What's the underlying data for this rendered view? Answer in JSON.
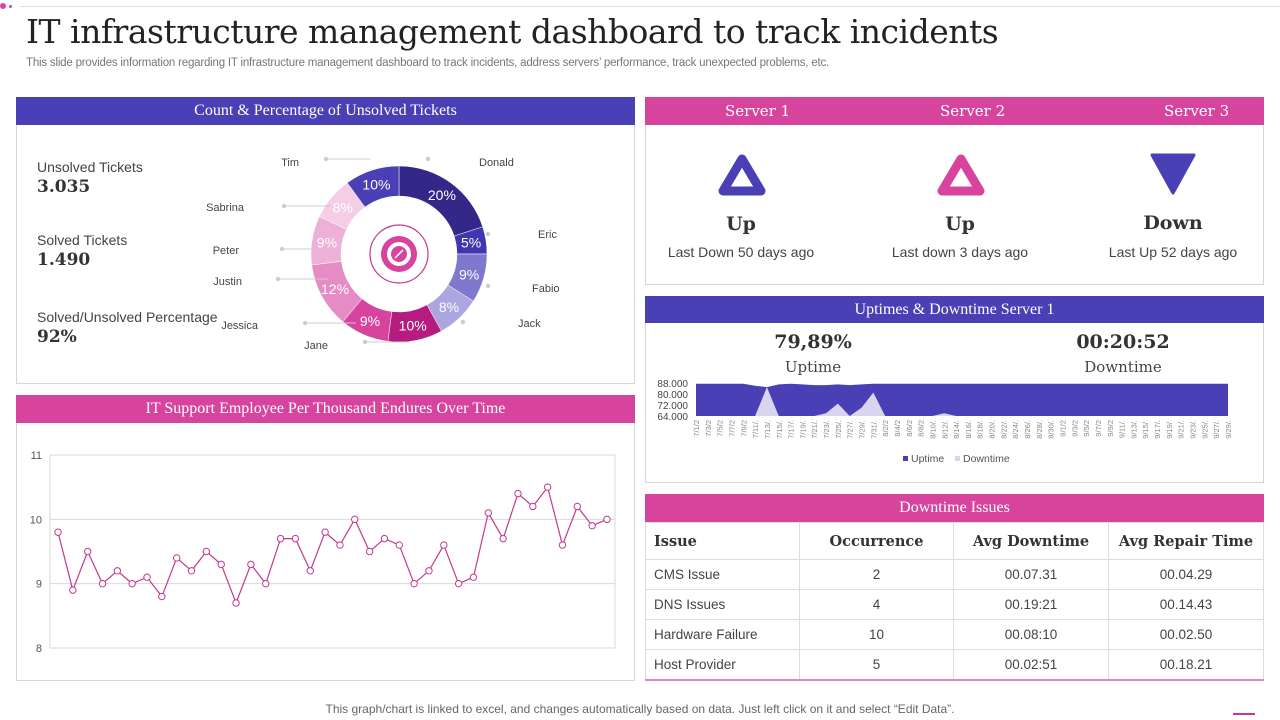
{
  "header": {
    "title": "IT infrastructure management dashboard to track incidents",
    "subtitle": "This slide provides information regarding IT infrastructure management dashboard to track incidents, address servers’ performance, track unexpected problems, etc."
  },
  "colors": {
    "blue": "#4a40b5",
    "pink": "#d6449e"
  },
  "tickets": {
    "title": "Count  & Percentage of Unsolved Tickets",
    "stats": [
      {
        "label": "Unsolved  Tickets",
        "value": "3.035"
      },
      {
        "label": "Solved  Tickets",
        "value": "1.490"
      },
      {
        "label": "Solved/Unsolved  Percentage",
        "value": "92%"
      }
    ],
    "center_icon": "percent-target-icon"
  },
  "servers": {
    "items": [
      {
        "name": "Server 1",
        "state": "Up",
        "note": "Last Down 50 days ago",
        "icon": "triangle-up-outline-icon",
        "color": "#4a40b5"
      },
      {
        "name": "Server 2",
        "state": "Up",
        "note": "Last down 3 days ago",
        "icon": "triangle-up-outline-icon",
        "color": "#d6449e"
      },
      {
        "name": "Server 3",
        "state": "Down",
        "note": "Last Up 52 days ago",
        "icon": "triangle-down-icon",
        "color": "#4a40b5"
      }
    ]
  },
  "uptime": {
    "title": "Uptimes & Downtime Server 1",
    "uptime_value": "79,89%",
    "uptime_label": "Uptime",
    "downtime_value": "00:20:52",
    "downtime_label": "Downtime"
  },
  "employee": {
    "title": "IT Support Employee Per Thousand Endures Over Time"
  },
  "downtime_issues": {
    "title": "Downtime Issues",
    "columns": [
      "Issue",
      "Occurrence",
      "Avg Downtime",
      "Avg Repair Time"
    ],
    "rows": [
      [
        "CMS Issue",
        "2",
        "00.07.31",
        "00.04.29"
      ],
      [
        "DNS Issues",
        "4",
        "00.19:21",
        "00.14.43"
      ],
      [
        "Hardware  Failure",
        "10",
        "00.08:10",
        "00.02.50"
      ],
      [
        "Host Provider",
        "5",
        "00.02:51",
        "00.18.21"
      ]
    ]
  },
  "footer": "This graph/chart is linked to excel,  and changes automatically based on data. Just left click on it and select “Edit Data”.",
  "chart_data": [
    {
      "type": "pie",
      "subtype": "donut",
      "categories": [
        "Donald",
        "Eric",
        "Fabio",
        "Jack",
        "Jane",
        "Jessica",
        "Justin",
        "Peter",
        "Sabrina",
        "Tim"
      ],
      "values": [
        20,
        5,
        9,
        8,
        10,
        9,
        12,
        9,
        8,
        10
      ],
      "data_labels": [
        "20%",
        "5%",
        "9%",
        "8%",
        "10%",
        "9%",
        "12%",
        "9%",
        "8%",
        "10%"
      ],
      "colors": [
        "#33288a",
        "#3f36b0",
        "#7f78cf",
        "#aba6e0",
        "#b61c7f",
        "#d6449e",
        "#e48cc3",
        "#edb1d8",
        "#f4cde6",
        "#4a40b5"
      ]
    },
    {
      "type": "area",
      "categories": [
        "7/1/2",
        "7/3/2",
        "7/5/2",
        "7/7/2",
        "7/9/2",
        "7/11/.",
        "7/13/.",
        "7/15/.",
        "7/17/.",
        "7/19/.",
        "7/21/.",
        "7/23/.",
        "7/25/.",
        "7/27/.",
        "7/29/.",
        "7/31/.",
        "8/2/2",
        "8/4/2",
        "8/6/2",
        "8/8/2",
        "8/10/.",
        "8/12/.",
        "8/14/.",
        "8/16/.",
        "8/18/.",
        "8/20/.",
        "8/22/.",
        "8/24/.",
        "8/26/.",
        "8/28/.",
        "8/30/.",
        "9/1/2",
        "9/3/2",
        "9/5/2",
        "9/7/2",
        "9/9/2",
        "9/11/.",
        "9/13/.",
        "9/15/.",
        "9/17/.",
        "9/19/.",
        "9/21/.",
        "9/23/.",
        "9/25/.",
        "9/27/.",
        "9/29/."
      ],
      "series": [
        {
          "name": "Uptime",
          "color": "#4a40b5",
          "values": [
            87500,
            87500,
            87500,
            87500,
            87500,
            86000,
            85000,
            87000,
            87500,
            87000,
            86500,
            86500,
            87000,
            86500,
            87000,
            87500,
            87500,
            87500,
            87500,
            87500,
            87500,
            87500,
            87500,
            87500,
            87500,
            87500,
            87500,
            87500,
            87500,
            87500,
            87500,
            87500,
            87500,
            87500,
            87500,
            87500,
            87500,
            87500,
            87500,
            87500,
            87500,
            87500,
            87500,
            87500,
            87500,
            87500
          ]
        },
        {
          "name": "Downtime",
          "color": "#d9d5ef",
          "values": [
            64000,
            64000,
            64000,
            64000,
            64000,
            64000,
            85000,
            64000,
            64000,
            64000,
            64000,
            66000,
            73000,
            64000,
            70000,
            81000,
            64000,
            64000,
            64000,
            64000,
            64000,
            66000,
            64000,
            64000,
            64000,
            64000,
            64000,
            64000,
            64000,
            64000,
            64000,
            64000,
            64000,
            64000,
            64000,
            64000,
            64000,
            64000,
            64000,
            64000,
            64000,
            64000,
            64000,
            64000,
            64000,
            64000
          ]
        }
      ],
      "yticks": [
        "88.000",
        "80.000",
        "72.000",
        "64.000"
      ],
      "ylim": [
        64000,
        88000
      ],
      "legend": "bottom"
    },
    {
      "type": "line",
      "values": [
        9.8,
        8.9,
        9.5,
        9.0,
        9.2,
        9.0,
        9.1,
        8.8,
        9.4,
        9.2,
        9.5,
        9.3,
        8.7,
        9.3,
        9.0,
        9.7,
        9.7,
        9.2,
        9.8,
        9.6,
        10.0,
        9.5,
        9.7,
        9.6,
        9.0,
        9.2,
        9.6,
        9.0,
        9.1,
        10.1,
        9.7,
        10.4,
        10.2,
        10.5,
        9.6,
        10.2,
        9.9,
        10.0
      ],
      "yticks": [
        "11",
        "10",
        "9",
        "8"
      ],
      "ylim": [
        8,
        11
      ],
      "grid": true,
      "color": "#c2398f"
    }
  ]
}
